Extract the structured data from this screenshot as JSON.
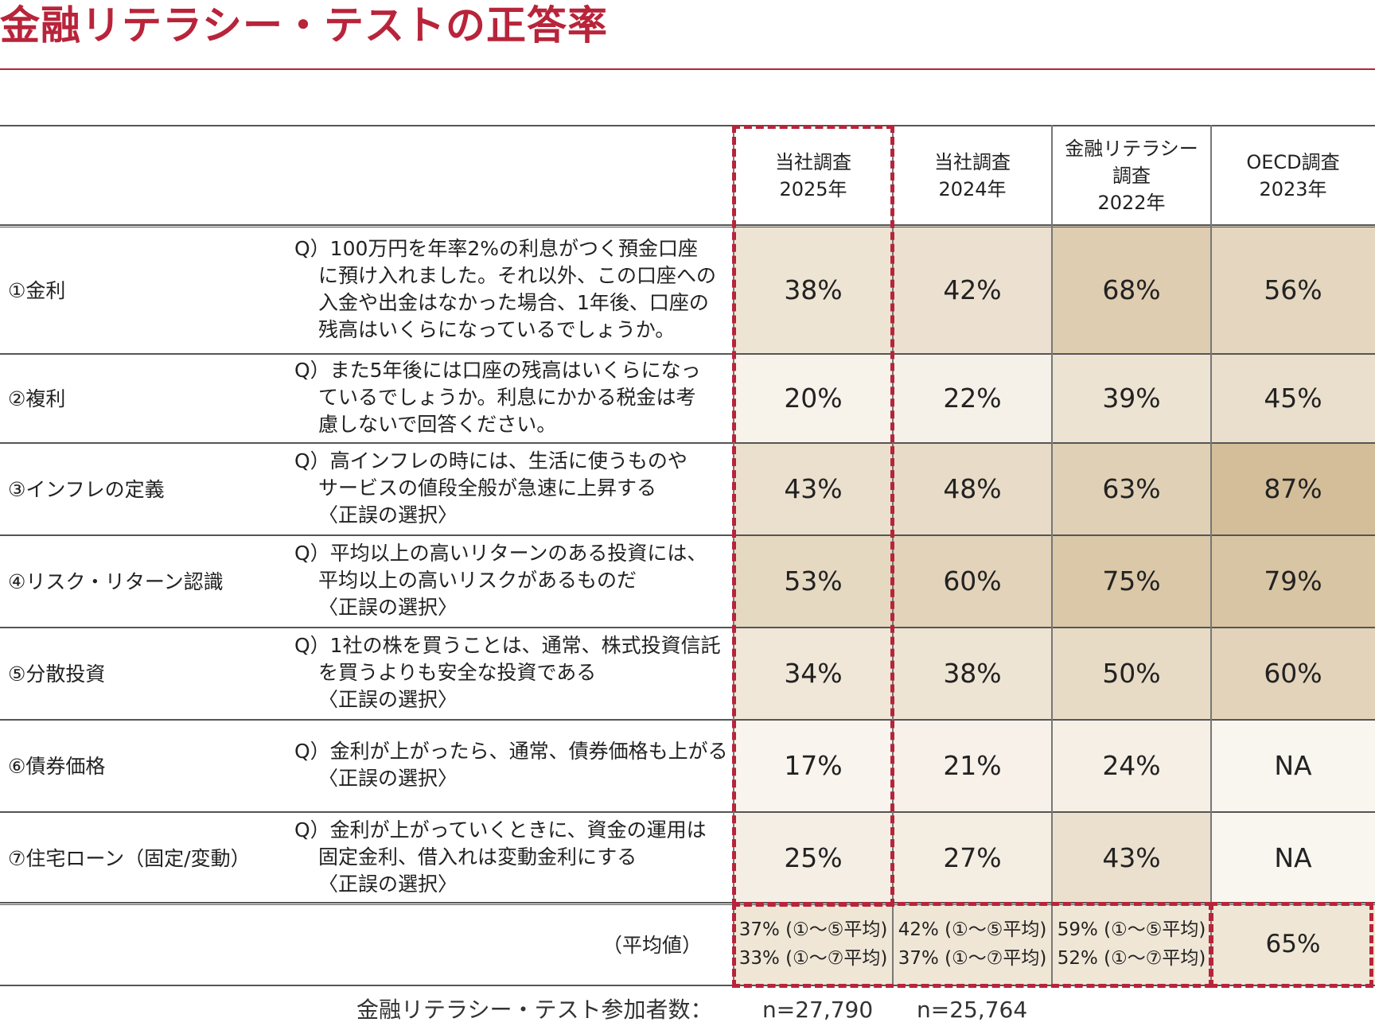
{
  "title": "金融リテラシー・テストの正答率",
  "chart_data": {
    "type": "table",
    "columns": [
      {
        "lines": [
          "当社調査",
          "2025年"
        ]
      },
      {
        "lines": [
          "当社調査",
          "2024年"
        ]
      },
      {
        "lines": [
          "金融リテラシー",
          "調査",
          "2022年"
        ]
      },
      {
        "lines": [
          "OECD調査",
          "2023年"
        ]
      }
    ],
    "rows": [
      {
        "label": "①金利",
        "question": [
          "Q）100万円を年率2%の利息がつく預金口座",
          "に預け入れました。それ以外、この口座への",
          "入金や出金はなかった場合、1年後、口座の",
          "残高はいくらになっているでしょうか。"
        ],
        "values": [
          "38%",
          "42%",
          "68%",
          "56%"
        ]
      },
      {
        "label": "②複利",
        "question": [
          "Q）また5年後には口座の残高はいくらになっ",
          "ているでしょうか。利息にかかる税金は考",
          "慮しないで回答ください。"
        ],
        "values": [
          "20%",
          "22%",
          "39%",
          "45%"
        ]
      },
      {
        "label": "③インフレの定義",
        "question": [
          "Q）高インフレの時には、生活に使うものや",
          "サービスの値段全般が急速に上昇する",
          "〈正誤の選択〉"
        ],
        "values": [
          "43%",
          "48%",
          "63%",
          "87%"
        ]
      },
      {
        "label": "④リスク・リターン認識",
        "question": [
          "Q）平均以上の高いリターンのある投資には、",
          "平均以上の高いリスクがあるものだ",
          "〈正誤の選択〉"
        ],
        "values": [
          "53%",
          "60%",
          "75%",
          "79%"
        ]
      },
      {
        "label": "⑤分散投資",
        "question": [
          "Q）1社の株を買うことは、通常、株式投資信託",
          "を買うよりも安全な投資である",
          "〈正誤の選択〉"
        ],
        "values": [
          "34%",
          "38%",
          "50%",
          "60%"
        ]
      },
      {
        "label": "⑥債券価格",
        "question": [
          "Q）金利が上がったら、通常、債券価格も上がる",
          "〈正誤の選択〉"
        ],
        "values": [
          "17%",
          "21%",
          "24%",
          "NA"
        ]
      },
      {
        "label": "⑦住宅ローン（固定/変動）",
        "question": [
          "Q）金利が上がっていくときに、資金の運用は",
          "固定金利、借入れは変動金利にする",
          "〈正誤の選択〉"
        ],
        "values": [
          "25%",
          "27%",
          "43%",
          "NA"
        ]
      }
    ],
    "average": {
      "label": "（平均値）",
      "values": [
        [
          "37% (①～⑤平均)",
          "33% (①～⑦平均)"
        ],
        [
          "42% (①～⑤平均)",
          "37% (①～⑦平均)"
        ],
        [
          "59% (①～⑤平均)",
          "52% (①～⑦平均)"
        ],
        [
          "65%"
        ]
      ]
    },
    "highlight_color": "#b8243a"
  },
  "footer": {
    "label": "金融リテラシー・テスト参加者数：",
    "n2025": "n=27,790",
    "n2024": "n=25,764"
  }
}
